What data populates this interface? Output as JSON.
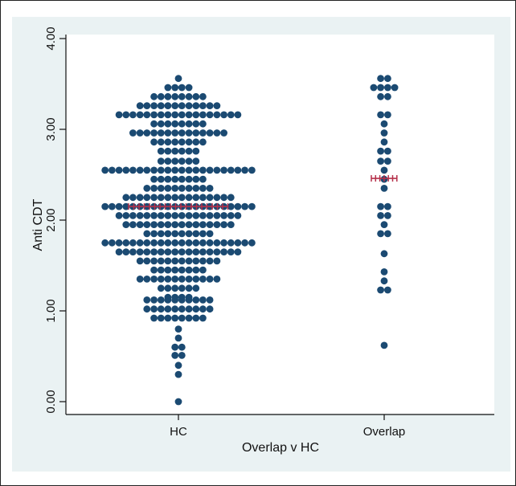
{
  "chart_data": {
    "type": "scatter",
    "subtype": "dot-strip (beeswarm)",
    "title": "",
    "xlabel": "Overlap v HC",
    "ylabel": "Anti CDT",
    "ylim": [
      0,
      4
    ],
    "yticks": [
      "0.00",
      "1.00",
      "2.00",
      "3.00",
      "4.00"
    ],
    "grid": false,
    "categories": [
      "HC",
      "Overlap"
    ],
    "colors": {
      "points": "#1b4a72",
      "mean_marker": "#b5304a",
      "plot_bg": "#ffffff",
      "outer_bg": "#eaf2f3"
    },
    "series": [
      {
        "category": "HC",
        "mean": 2.15,
        "distribution": [
          [
            3.56,
            1
          ],
          [
            3.46,
            4
          ],
          [
            3.36,
            8
          ],
          [
            3.26,
            12
          ],
          [
            3.16,
            18
          ],
          [
            3.06,
            8
          ],
          [
            2.96,
            14
          ],
          [
            2.86,
            8
          ],
          [
            2.76,
            6
          ],
          [
            2.65,
            6
          ],
          [
            2.55,
            22
          ],
          [
            2.45,
            8
          ],
          [
            2.35,
            10
          ],
          [
            2.25,
            16
          ],
          [
            2.15,
            22
          ],
          [
            2.05,
            18
          ],
          [
            1.95,
            16
          ],
          [
            1.85,
            10
          ],
          [
            1.75,
            22
          ],
          [
            1.65,
            18
          ],
          [
            1.55,
            12
          ],
          [
            1.45,
            8
          ],
          [
            1.35,
            12
          ],
          [
            1.25,
            6
          ],
          [
            1.15,
            4
          ],
          [
            1.12,
            10
          ],
          [
            1.02,
            10
          ],
          [
            0.92,
            8
          ],
          [
            0.8,
            1
          ],
          [
            0.7,
            1
          ],
          [
            0.6,
            2
          ],
          [
            0.51,
            2
          ],
          [
            0.4,
            1
          ],
          [
            0.3,
            1
          ],
          [
            0.0,
            1
          ]
        ]
      },
      {
        "category": "Overlap",
        "mean": 2.46,
        "distribution": [
          [
            3.56,
            2
          ],
          [
            3.46,
            4
          ],
          [
            3.36,
            2
          ],
          [
            3.16,
            2
          ],
          [
            3.06,
            1
          ],
          [
            2.96,
            1
          ],
          [
            2.86,
            1
          ],
          [
            2.76,
            2
          ],
          [
            2.65,
            2
          ],
          [
            2.55,
            1
          ],
          [
            2.45,
            1
          ],
          [
            2.35,
            1
          ],
          [
            2.15,
            2
          ],
          [
            2.05,
            2
          ],
          [
            1.95,
            1
          ],
          [
            1.85,
            2
          ],
          [
            1.63,
            1
          ],
          [
            1.43,
            1
          ],
          [
            1.33,
            1
          ],
          [
            1.23,
            2
          ],
          [
            0.62,
            1
          ]
        ]
      }
    ]
  }
}
